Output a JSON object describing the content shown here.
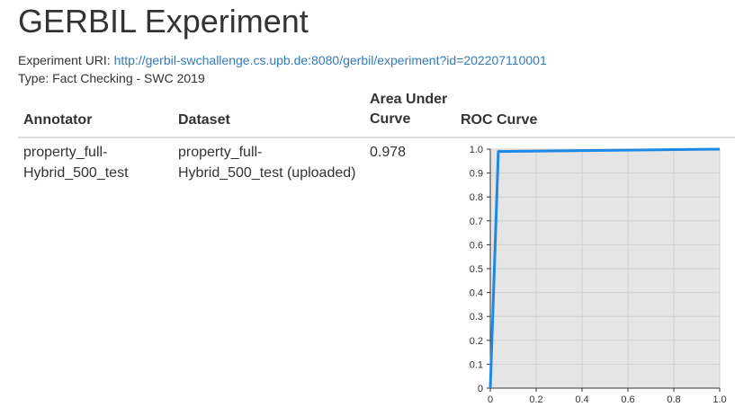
{
  "page": {
    "title": "GERBIL Experiment",
    "uri_label": "Experiment URI:",
    "uri": "http://gerbil-swchallenge.cs.upb.de:8080/gerbil/experiment?id=202207110001",
    "type_line": "Type: Fact Checking - SWC 2019"
  },
  "table": {
    "headers": {
      "annotator": "Annotator",
      "dataset": "Dataset",
      "auc_line1": "Area Under",
      "auc_line2": "Curve",
      "roc": "ROC Curve"
    },
    "row": {
      "annotator_line1": "property_full-",
      "annotator_line2": "Hybrid_500_test",
      "dataset_line1": "property_full-",
      "dataset_line2": "Hybrid_500_test (uploaded)",
      "auc": "0.978"
    }
  },
  "colors": {
    "line": "#1e88e5",
    "plot_bg": "#e5e5e5",
    "grid": "#d0d0d0",
    "link": "#337ab7"
  },
  "chart_data": {
    "type": "line",
    "title": "",
    "xlabel": "",
    "ylabel": "",
    "xlim": [
      0,
      1
    ],
    "ylim": [
      0,
      1
    ],
    "x_ticks": [
      "0",
      "0.2",
      "0.4",
      "0.6",
      "0.8",
      "1.0"
    ],
    "y_ticks": [
      "0",
      "0.1",
      "0.2",
      "0.3",
      "0.4",
      "0.5",
      "0.6",
      "0.7",
      "0.8",
      "0.9",
      "1.0"
    ],
    "grid": true,
    "series": [
      {
        "x": [
          0,
          0.035,
          1.0
        ],
        "y": [
          0,
          0.99,
          1.0
        ]
      }
    ]
  }
}
